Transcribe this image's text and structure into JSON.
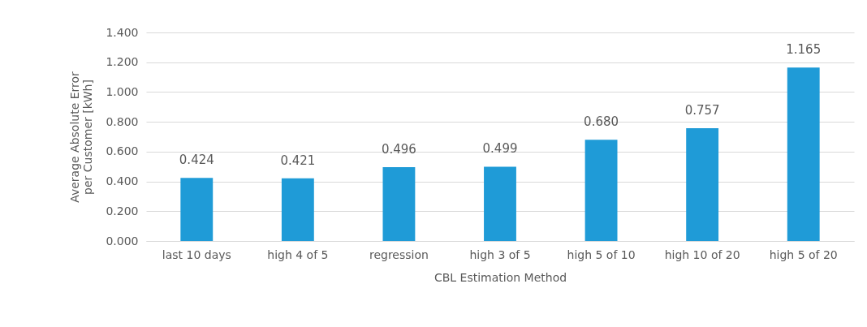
{
  "chart_data": {
    "type": "bar",
    "xlabel": "CBL Estimation Method",
    "ylabel": "Average Absolute Error per Customer [kWh]",
    "categories": [
      "last 10 days",
      "high 4 of 5",
      "regression",
      "high 3 of 5",
      "high 5 of 10",
      "high 10 of 20",
      "high 5 of 20"
    ],
    "values": [
      0.424,
      0.421,
      0.496,
      0.499,
      0.68,
      0.757,
      1.165
    ],
    "value_labels": [
      "0.424",
      "0.421",
      "0.496",
      "0.499",
      "0.680",
      "0.757",
      "1.165"
    ],
    "color": "#1f9bd7",
    "ylim": [
      0,
      1.4
    ],
    "yticks": [
      {
        "value": 0,
        "label": "0.000"
      },
      {
        "value": 0.2,
        "label": "0.200"
      },
      {
        "value": 0.4,
        "label": "0.400"
      },
      {
        "value": 0.6,
        "label": "0.600"
      },
      {
        "value": 0.8,
        "label": "0.800"
      },
      {
        "value": 1,
        "label": "1.000"
      },
      {
        "value": 1.2,
        "label": "1.200"
      },
      {
        "value": 1.4,
        "label": "1.400"
      }
    ],
    "grid": "y"
  }
}
